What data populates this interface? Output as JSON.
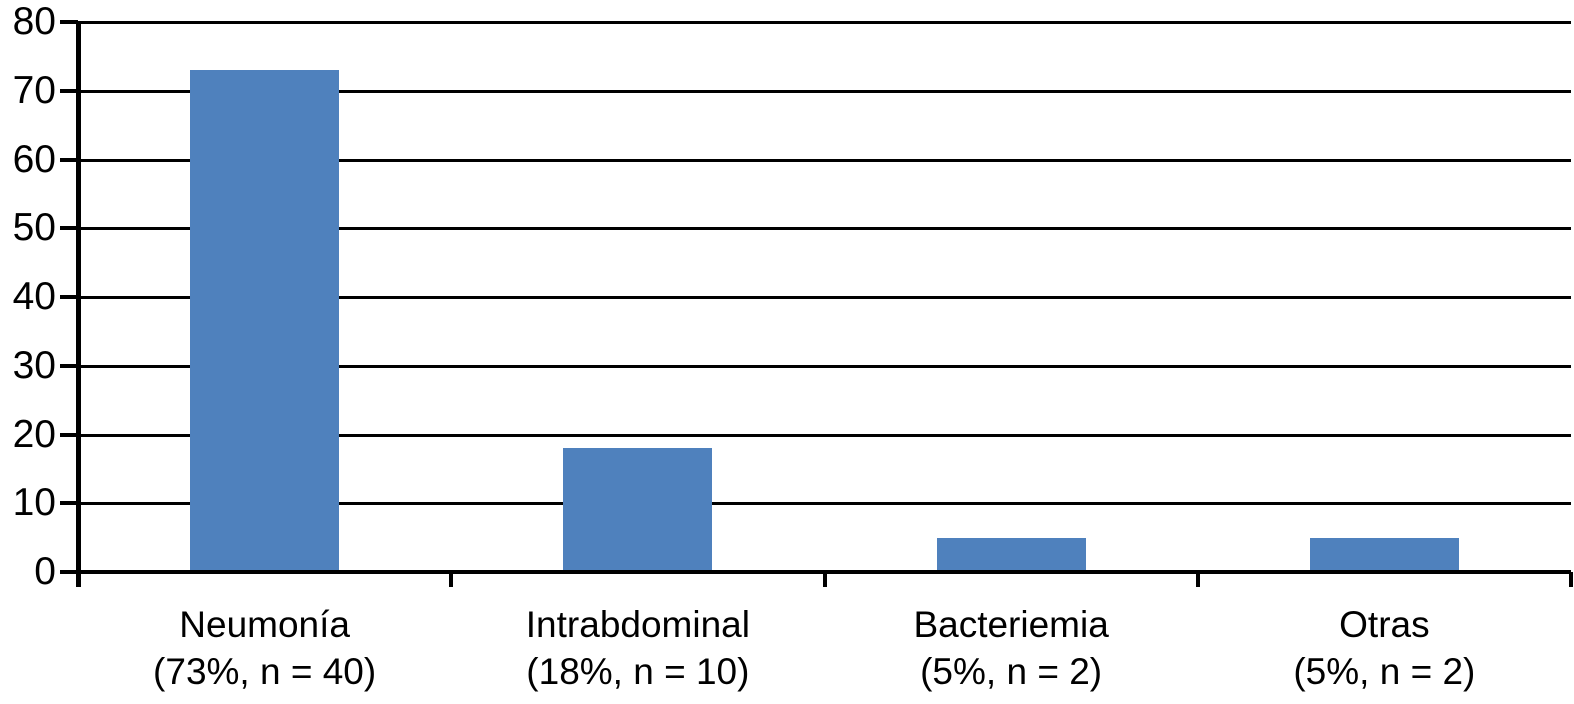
{
  "chart_data": {
    "type": "bar",
    "title": "",
    "xlabel": "",
    "ylabel": "",
    "categories": [
      "Neumonía",
      "Intrabdominal",
      "Bacteriemia",
      "Otras"
    ],
    "category_sublabels": [
      "(73%, n = 40)",
      "(18%, n = 10)",
      "(5%, n = 2)",
      "(5%, n = 2)"
    ],
    "values": [
      73,
      18,
      5,
      5
    ],
    "ylim": [
      0,
      80
    ],
    "yticks": [
      0,
      10,
      20,
      30,
      40,
      50,
      60,
      70,
      80
    ],
    "grid": true,
    "legend": false,
    "bar_color": "#4F81BD",
    "axis_color": "#000000",
    "background_color": "#FFFFFF"
  }
}
